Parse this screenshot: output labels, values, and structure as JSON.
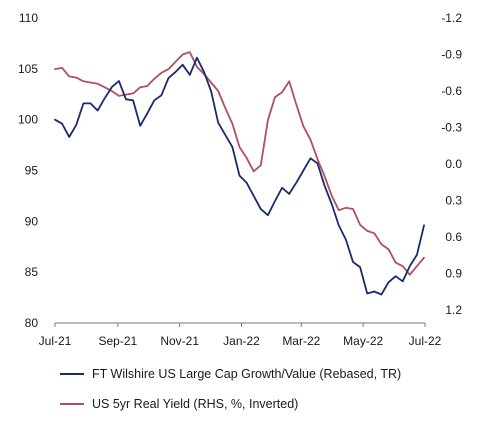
{
  "chart_data": {
    "type": "line",
    "title": "",
    "xlabel": "",
    "ylabel": "",
    "x_tick_labels": [
      "Jul-21",
      "Sep-21",
      "Nov-21",
      "Jan-22",
      "Mar-22",
      "May-22",
      "Jul-22"
    ],
    "x_range": [
      "2021-07-01",
      "2022-07-01"
    ],
    "left_axis": {
      "ticks": [
        "80",
        "85",
        "90",
        "95",
        "100",
        "105",
        "110"
      ],
      "ylim": [
        80,
        110
      ]
    },
    "right_axis": {
      "ticks": [
        "1.2",
        "0.9",
        "0.6",
        "0.3",
        "0.0",
        "-0.3",
        "-0.6",
        "-0.9",
        "-1.2"
      ],
      "ylim": [
        1.2,
        -1.2
      ],
      "inverted": true
    },
    "grid": false,
    "legend_position": "bottom",
    "series": [
      {
        "name": "FT Wilshire US Large Cap Growth/Value (Rebased, TR)",
        "axis": "left",
        "color": "#1b2a6b",
        "x": [
          "2021-07-01",
          "2021-07-08",
          "2021-07-15",
          "2021-07-22",
          "2021-07-29",
          "2021-08-05",
          "2021-08-12",
          "2021-08-19",
          "2021-08-26",
          "2021-09-02",
          "2021-09-09",
          "2021-09-16",
          "2021-09-23",
          "2021-09-30",
          "2021-10-07",
          "2021-10-14",
          "2021-10-21",
          "2021-10-28",
          "2021-11-04",
          "2021-11-11",
          "2021-11-18",
          "2021-11-25",
          "2021-12-02",
          "2021-12-09",
          "2021-12-16",
          "2021-12-23",
          "2021-12-30",
          "2022-01-06",
          "2022-01-13",
          "2022-01-20",
          "2022-01-27",
          "2022-02-03",
          "2022-02-10",
          "2022-02-17",
          "2022-02-24",
          "2022-03-03",
          "2022-03-10",
          "2022-03-17",
          "2022-03-24",
          "2022-03-31",
          "2022-04-07",
          "2022-04-14",
          "2022-04-21",
          "2022-04-28",
          "2022-05-05",
          "2022-05-12",
          "2022-05-19",
          "2022-05-26",
          "2022-06-02",
          "2022-06-09",
          "2022-06-16",
          "2022-06-23",
          "2022-06-30"
        ],
        "values": [
          100.0,
          99.6,
          98.3,
          99.5,
          101.6,
          101.6,
          100.9,
          102.1,
          103.2,
          103.8,
          102.0,
          101.9,
          99.4,
          100.6,
          101.9,
          102.4,
          104.1,
          104.7,
          105.4,
          104.4,
          106.1,
          104.7,
          102.8,
          99.7,
          98.5,
          97.3,
          94.5,
          93.8,
          92.5,
          91.2,
          90.6,
          92.0,
          93.3,
          92.7,
          93.8,
          95.0,
          96.2,
          95.7,
          93.5,
          91.7,
          89.6,
          88.2,
          86.0,
          85.5,
          82.9,
          83.1,
          82.8,
          84.0,
          84.6,
          84.1,
          85.6,
          86.7,
          89.6
        ]
      },
      {
        "name": "US 5yr Real Yield (RHS, %, Inverted)",
        "axis": "right",
        "color": "#b0505e",
        "x": [
          "2021-07-01",
          "2021-07-08",
          "2021-07-15",
          "2021-07-22",
          "2021-07-29",
          "2021-08-05",
          "2021-08-12",
          "2021-08-19",
          "2021-08-26",
          "2021-09-02",
          "2021-09-09",
          "2021-09-16",
          "2021-09-23",
          "2021-09-30",
          "2021-10-07",
          "2021-10-14",
          "2021-10-21",
          "2021-10-28",
          "2021-11-04",
          "2021-11-11",
          "2021-11-18",
          "2021-11-25",
          "2021-12-02",
          "2021-12-09",
          "2021-12-16",
          "2021-12-23",
          "2021-12-30",
          "2022-01-06",
          "2022-01-13",
          "2022-01-20",
          "2022-01-27",
          "2022-02-03",
          "2022-02-10",
          "2022-02-17",
          "2022-02-24",
          "2022-03-03",
          "2022-03-10",
          "2022-03-17",
          "2022-03-24",
          "2022-03-31",
          "2022-04-07",
          "2022-04-14",
          "2022-04-21",
          "2022-04-28",
          "2022-05-05",
          "2022-05-12",
          "2022-05-19",
          "2022-05-26",
          "2022-06-02",
          "2022-06-09",
          "2022-06-16",
          "2022-06-23",
          "2022-06-30"
        ],
        "values": [
          -0.78,
          -0.79,
          -0.72,
          -0.71,
          -0.68,
          -0.67,
          -0.66,
          -0.63,
          -0.6,
          -0.56,
          -0.57,
          -0.58,
          -0.63,
          -0.64,
          -0.7,
          -0.75,
          -0.78,
          -0.84,
          -0.9,
          -0.92,
          -0.8,
          -0.74,
          -0.67,
          -0.6,
          -0.46,
          -0.33,
          -0.14,
          -0.05,
          0.06,
          0.01,
          -0.36,
          -0.55,
          -0.59,
          -0.68,
          -0.49,
          -0.31,
          -0.2,
          -0.04,
          0.1,
          0.26,
          0.38,
          0.36,
          0.37,
          0.5,
          0.55,
          0.57,
          0.66,
          0.7,
          0.81,
          0.84,
          0.91,
          0.84,
          0.77
        ]
      }
    ]
  }
}
